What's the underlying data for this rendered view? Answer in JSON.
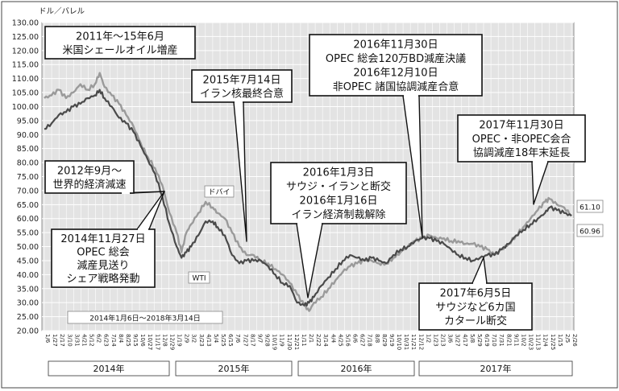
{
  "chart_data": {
    "type": "line",
    "ylabel": "ドル／バレル",
    "ylim": [
      20,
      130
    ],
    "yticks": [
      "130.00",
      "125.00",
      "120.00",
      "115.00",
      "110.00",
      "105.00",
      "100.00",
      "95.00",
      "90.00",
      "85.00",
      "80.00",
      "75.00",
      "70.00",
      "65.00",
      "60.00",
      "55.00",
      "50.00",
      "45.00",
      "40.00",
      "35.00",
      "30.00",
      "25.00",
      "20.00"
    ],
    "grid": true,
    "xticks": [
      "1/6",
      "1/27",
      "2/17",
      "3/10",
      "3/31",
      "4/21",
      "5/12",
      "6/2",
      "6/23",
      "7/14",
      "8/4",
      "8/25",
      "9/15",
      "10/6",
      "10/27",
      "11/17",
      "12/8",
      "12/29",
      "1/19",
      "2/9",
      "3/2",
      "3/23",
      "4/13",
      "5/4",
      "5/25",
      "6/15",
      "7/6",
      "7/27",
      "8/17",
      "9/7",
      "9/28",
      "10/19",
      "11/9",
      "11/30",
      "12/21",
      "1/11",
      "2/1",
      "2/22",
      "3/14",
      "4/4",
      "4/25",
      "5/16",
      "6/6",
      "6/27",
      "7/18",
      "8/8",
      "8/29",
      "9/19",
      "10/10",
      "10/31",
      "11/21",
      "12/12",
      "1/2",
      "1/23",
      "2/13",
      "3/6",
      "3/27",
      "4/17",
      "5/8",
      "5/29",
      "6/19",
      "7/10",
      "7/31",
      "8/21",
      "9/11",
      "10/2",
      "10/23",
      "11/13",
      "12/4",
      "12/25",
      "1/15",
      "2/5",
      "2/26"
    ],
    "years": [
      "2014年",
      "2015年",
      "2016年",
      "2017年"
    ],
    "series": [
      {
        "name": "ドバイ",
        "color": "#9a9a9a",
        "points": [
          [
            0,
            103
          ],
          [
            3,
            104
          ],
          [
            6,
            106
          ],
          [
            9,
            103
          ],
          [
            12,
            105
          ],
          [
            15,
            108
          ],
          [
            18,
            106
          ],
          [
            21,
            108
          ],
          [
            23,
            112
          ],
          [
            25,
            107
          ],
          [
            28,
            104
          ],
          [
            31,
            101
          ],
          [
            34,
            97
          ],
          [
            37,
            93
          ],
          [
            40,
            87
          ],
          [
            43,
            82
          ],
          [
            46,
            78
          ],
          [
            49,
            72
          ],
          [
            52,
            62
          ],
          [
            55,
            55
          ],
          [
            57,
            48
          ],
          [
            59,
            55
          ],
          [
            61,
            58
          ],
          [
            64,
            62
          ],
          [
            67,
            66
          ],
          [
            70,
            64
          ],
          [
            72,
            62
          ],
          [
            75,
            60
          ],
          [
            78,
            55
          ],
          [
            81,
            50
          ],
          [
            84,
            47
          ],
          [
            87,
            47
          ],
          [
            90,
            45
          ],
          [
            93,
            44
          ],
          [
            96,
            42
          ],
          [
            99,
            40
          ],
          [
            102,
            37
          ],
          [
            105,
            33
          ],
          [
            108,
            29
          ],
          [
            110,
            27
          ],
          [
            112,
            30
          ],
          [
            115,
            32
          ],
          [
            118,
            35
          ],
          [
            121,
            38
          ],
          [
            124,
            41
          ],
          [
            127,
            43
          ],
          [
            130,
            44
          ],
          [
            133,
            45
          ],
          [
            136,
            45
          ],
          [
            139,
            44
          ],
          [
            142,
            44
          ],
          [
            145,
            46
          ],
          [
            148,
            48
          ],
          [
            151,
            50
          ],
          [
            154,
            52
          ],
          [
            157,
            53
          ],
          [
            160,
            54
          ],
          [
            163,
            53
          ],
          [
            166,
            53
          ],
          [
            169,
            52
          ],
          [
            172,
            52
          ],
          [
            175,
            51
          ],
          [
            178,
            51
          ],
          [
            181,
            50
          ],
          [
            184,
            49
          ],
          [
            187,
            47
          ],
          [
            190,
            49
          ],
          [
            193,
            51
          ],
          [
            196,
            54
          ],
          [
            199,
            57
          ],
          [
            202,
            60
          ],
          [
            205,
            63
          ],
          [
            208,
            66
          ],
          [
            210,
            67
          ],
          [
            213,
            65
          ],
          [
            216,
            64
          ],
          [
            219,
            61.1
          ]
        ]
      },
      {
        "name": "WTI",
        "color": "#4a4a4a",
        "points": [
          [
            0,
            92
          ],
          [
            3,
            94
          ],
          [
            6,
            97
          ],
          [
            9,
            98
          ],
          [
            12,
            100
          ],
          [
            15,
            101
          ],
          [
            18,
            103
          ],
          [
            21,
            104
          ],
          [
            23,
            106
          ],
          [
            25,
            103
          ],
          [
            28,
            100
          ],
          [
            31,
            96
          ],
          [
            34,
            94
          ],
          [
            37,
            91
          ],
          [
            40,
            86
          ],
          [
            43,
            81
          ],
          [
            46,
            76
          ],
          [
            49,
            68
          ],
          [
            52,
            58
          ],
          [
            55,
            50
          ],
          [
            57,
            46
          ],
          [
            59,
            48
          ],
          [
            61,
            50
          ],
          [
            64,
            54
          ],
          [
            67,
            59
          ],
          [
            70,
            59
          ],
          [
            72,
            57
          ],
          [
            75,
            54
          ],
          [
            78,
            47
          ],
          [
            81,
            44
          ],
          [
            84,
            45
          ],
          [
            87,
            45
          ],
          [
            90,
            45
          ],
          [
            93,
            43
          ],
          [
            96,
            40
          ],
          [
            99,
            37
          ],
          [
            102,
            36
          ],
          [
            105,
            30
          ],
          [
            108,
            29
          ],
          [
            110,
            30
          ],
          [
            112,
            32
          ],
          [
            115,
            36
          ],
          [
            118,
            39
          ],
          [
            121,
            42
          ],
          [
            124,
            45
          ],
          [
            127,
            47
          ],
          [
            130,
            46
          ],
          [
            133,
            45
          ],
          [
            136,
            46
          ],
          [
            139,
            45
          ],
          [
            142,
            44
          ],
          [
            145,
            47
          ],
          [
            148,
            49
          ],
          [
            151,
            50
          ],
          [
            154,
            52
          ],
          [
            157,
            53
          ],
          [
            160,
            53
          ],
          [
            163,
            52
          ],
          [
            166,
            51
          ],
          [
            169,
            49
          ],
          [
            172,
            47
          ],
          [
            175,
            46
          ],
          [
            178,
            45
          ],
          [
            181,
            46
          ],
          [
            184,
            47
          ],
          [
            187,
            47
          ],
          [
            190,
            49
          ],
          [
            193,
            51
          ],
          [
            196,
            54
          ],
          [
            199,
            56
          ],
          [
            202,
            58
          ],
          [
            205,
            60
          ],
          [
            208,
            62
          ],
          [
            210,
            64
          ],
          [
            213,
            63
          ],
          [
            216,
            62
          ],
          [
            219,
            60.96
          ]
        ]
      }
    ],
    "series_labels": [
      "ドバイ",
      "WTI"
    ],
    "end_labels": [
      "61.10",
      "60.96"
    ],
    "period_label": "2014年1月6日～2018年3月14日",
    "annotations": [
      {
        "lines": [
          "2011年～15年6月",
          "米国シェールオイル増産"
        ]
      },
      {
        "lines": [
          "2012年9月～",
          "世界的経済減速"
        ]
      },
      {
        "lines": [
          "2014年11月27日",
          "OPEC 総会",
          "減産見送り",
          "シェア戦略発動"
        ]
      },
      {
        "lines": [
          "2015年7月14日",
          "イラン核最終合意"
        ]
      },
      {
        "lines": [
          "2016年1月3日",
          "サウジ・イランと断交",
          "2016年1月16日",
          "イラン経済制裁解除"
        ]
      },
      {
        "lines": [
          "2016年11月30日",
          "OPEC 総会120万BD減産決議",
          "2016年12月10日",
          "非OPEC 諸国協調減産合意"
        ]
      },
      {
        "lines": [
          "2017年11月30日",
          "OPEC・非OPEC会合",
          "協調減産18年末延長"
        ]
      },
      {
        "lines": [
          "2017年6月5日",
          "サウジなど6カ国",
          "カタール断交"
        ]
      }
    ]
  }
}
